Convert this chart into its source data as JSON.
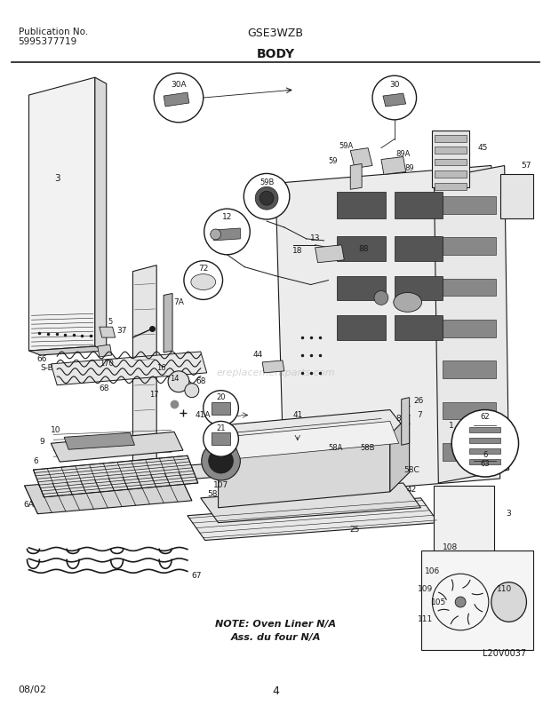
{
  "title_center": "GSE3WZB",
  "title_section": "BODY",
  "pub_no_label": "Publication No.",
  "pub_no_value": "5995377719",
  "date_label": "08/02",
  "page_number": "4",
  "watermark": "ereplacementparts.com",
  "note_line1": "NOTE: Oven Liner N/A",
  "note_line2": "Ass. du four N/A",
  "diagram_ref": "L20V0037",
  "bg_color": "#ffffff",
  "line_color": "#1a1a1a",
  "text_color": "#1a1a1a",
  "header_line_color": "#222222",
  "figsize": [
    6.2,
    7.94
  ],
  "dpi": 100
}
